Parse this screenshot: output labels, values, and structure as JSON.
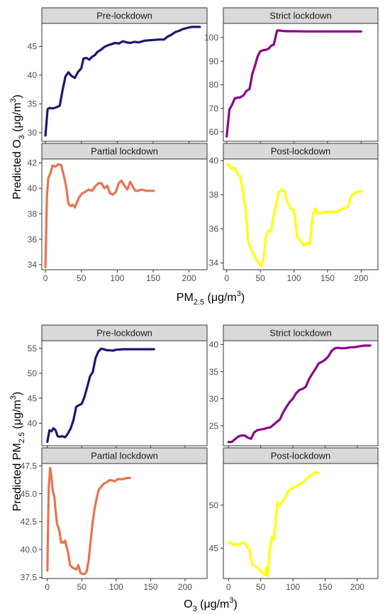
{
  "top_figure": {
    "xlabel": {
      "main": "PM",
      "sub": "2.5",
      "rest": " (μg/m",
      "sup": "3",
      "end": ")"
    },
    "ylabel": {
      "main": "Predicted O",
      "sub": "3",
      "rest": " (μg/m",
      "sup": "3",
      "end": ")"
    }
  },
  "bottom_figure": {
    "xlabel": {
      "main": "O",
      "sub": "3",
      "rest": " (μg/m",
      "sup": "3",
      "end": ")"
    },
    "ylabel": {
      "main": "Predicted PM",
      "sub": "2.5",
      "rest": " (μg/m",
      "sup": "3",
      "end": ")"
    }
  },
  "chart_data": [
    {
      "type": "line",
      "panel": "Pre-lockdown",
      "figure": "top",
      "xlim": [
        -5,
        225
      ],
      "ylim": [
        28.5,
        49
      ],
      "xticks": [
        0,
        50,
        100,
        150,
        200
      ],
      "yticks": [
        30,
        35,
        40,
        45
      ],
      "color": "#191970",
      "x": [
        0,
        3,
        6,
        10,
        13,
        17,
        20,
        24,
        28,
        32,
        36,
        41,
        45,
        50,
        53,
        57,
        61,
        65,
        69,
        72,
        77,
        82,
        87,
        92,
        97,
        102,
        108,
        113,
        118,
        124,
        130,
        138,
        148,
        158,
        165,
        170,
        175,
        181,
        186,
        191,
        197,
        203,
        210,
        215
      ],
      "y": [
        29.5,
        34.1,
        34.3,
        34.2,
        34.3,
        34.5,
        34.7,
        37.5,
        39.8,
        40.5,
        39.9,
        39.5,
        40.5,
        41.2,
        42.9,
        43.0,
        42.7,
        43.2,
        43.5,
        44.0,
        44.4,
        44.9,
        45.2,
        45.4,
        45.6,
        45.5,
        45.9,
        45.7,
        45.6,
        45.8,
        45.7,
        46.0,
        46.1,
        46.2,
        46.2,
        46.7,
        47.0,
        47.5,
        47.7,
        48.0,
        48.2,
        48.4,
        48.4,
        48.4
      ]
    },
    {
      "type": "line",
      "panel": "Strict lockdown",
      "figure": "top",
      "xlim": [
        -5,
        225
      ],
      "ylim": [
        56,
        106
      ],
      "xticks": [
        0,
        50,
        100,
        150,
        200
      ],
      "yticks": [
        60,
        70,
        80,
        90,
        100
      ],
      "color": "#8B008B",
      "x": [
        0,
        4,
        8,
        12,
        16,
        20,
        25,
        29,
        34,
        38,
        42,
        46,
        50,
        54,
        58,
        62,
        66,
        70,
        75,
        79,
        83,
        90,
        100,
        120,
        150,
        180,
        200
      ],
      "y": [
        58,
        69.5,
        71.5,
        74.2,
        74.5,
        74.6,
        75.5,
        77.3,
        78.2,
        84.5,
        88.0,
        92.0,
        94.2,
        94.6,
        94.8,
        95.2,
        96.5,
        97.0,
        103.0,
        103.0,
        102.8,
        102.7,
        102.7,
        102.6,
        102.6,
        102.6,
        102.6
      ]
    },
    {
      "type": "line",
      "panel": "Partial lockdown",
      "figure": "top",
      "xlim": [
        -5,
        225
      ],
      "ylim": [
        33.6,
        42.3
      ],
      "xticks": [
        0,
        50,
        100,
        150,
        200
      ],
      "yticks": [
        34,
        36,
        38,
        40,
        42
      ],
      "color": "#E9734F",
      "x": [
        0,
        2,
        4,
        7,
        10,
        14,
        18,
        22,
        26,
        29,
        32,
        35,
        38,
        41,
        44,
        47,
        51,
        55,
        60,
        65,
        70,
        74,
        78,
        82,
        86,
        90,
        94,
        98,
        102,
        106,
        110,
        114,
        118,
        122,
        125,
        129,
        134,
        140,
        146,
        151
      ],
      "y": [
        33.8,
        39.3,
        40.8,
        41.2,
        41.8,
        41.7,
        41.9,
        41.8,
        40.9,
        40.1,
        38.8,
        38.6,
        38.7,
        38.5,
        38.9,
        39.3,
        39.6,
        39.7,
        39.9,
        39.8,
        40.2,
        40.4,
        40.4,
        40.0,
        40.2,
        39.6,
        39.5,
        39.7,
        40.4,
        40.6,
        40.2,
        39.9,
        40.5,
        40.1,
        39.8,
        39.8,
        39.9,
        39.8,
        39.8,
        39.8
      ]
    },
    {
      "type": "line",
      "panel": "Post-lockdown",
      "figure": "top",
      "xlim": [
        -5,
        225
      ],
      "ylim": [
        33.6,
        40.1
      ],
      "xticks": [
        0,
        50,
        100,
        150,
        200
      ],
      "yticks": [
        34,
        36,
        38,
        40
      ],
      "color": "#FFFF00",
      "x": [
        0,
        4,
        8,
        12,
        16,
        20,
        24,
        28,
        32,
        36,
        40,
        44,
        48,
        52,
        55,
        58,
        62,
        66,
        70,
        74,
        78,
        82,
        86,
        90,
        95,
        100,
        105,
        110,
        115,
        120,
        124,
        128,
        132,
        136,
        140,
        145,
        150,
        156,
        162,
        168,
        174,
        180,
        185,
        190,
        196,
        201
      ],
      "y": [
        39.8,
        39.7,
        39.5,
        39.6,
        39.2,
        39.1,
        38.2,
        37.2,
        35.3,
        34.8,
        34.5,
        34.2,
        34.0,
        33.8,
        34.3,
        35.5,
        35.9,
        35.9,
        36.8,
        37.5,
        38.2,
        38.3,
        38.2,
        37.6,
        37.2,
        37.1,
        35.5,
        35.3,
        35.0,
        35.2,
        35.1,
        36.8,
        37.2,
        36.9,
        36.9,
        37.0,
        37.0,
        37.0,
        37.0,
        37.1,
        37.2,
        37.3,
        37.9,
        38.1,
        38.2,
        38.2
      ]
    },
    {
      "type": "line",
      "panel": "Pre-lockdown",
      "figure": "bottom",
      "xlim": [
        -8,
        232
      ],
      "ylim": [
        35.5,
        56.5
      ],
      "xticks": [
        0,
        50,
        100,
        150,
        200
      ],
      "yticks": [
        40,
        45,
        50,
        55
      ],
      "color": "#191970",
      "x": [
        0,
        3,
        6,
        9,
        12,
        15,
        18,
        22,
        26,
        30,
        34,
        38,
        42,
        46,
        50,
        54,
        58,
        62,
        66,
        70,
        74,
        78,
        82,
        86,
        90,
        95,
        100,
        110,
        120,
        130,
        140,
        150,
        155
      ],
      "y": [
        36.3,
        38.6,
        38.4,
        39.0,
        38.6,
        37.4,
        37.3,
        37.4,
        37.2,
        38.0,
        39.0,
        40.7,
        43.3,
        43.6,
        43.9,
        45.3,
        47.3,
        49.4,
        50.2,
        53.0,
        54.3,
        54.9,
        54.8,
        54.6,
        54.6,
        54.5,
        54.7,
        54.8,
        54.8,
        54.8,
        54.8,
        54.8,
        54.8
      ]
    },
    {
      "type": "line",
      "panel": "Strict lockdown",
      "figure": "bottom",
      "xlim": [
        -8,
        232
      ],
      "ylim": [
        21.3,
        40.7
      ],
      "xticks": [
        0,
        50,
        100,
        150,
        200
      ],
      "yticks": [
        25,
        30,
        35,
        40
      ],
      "color": "#8B008B",
      "x": [
        0,
        5,
        10,
        15,
        20,
        25,
        30,
        35,
        40,
        45,
        50,
        55,
        60,
        65,
        70,
        75,
        80,
        85,
        90,
        95,
        100,
        105,
        110,
        115,
        120,
        125,
        130,
        135,
        140,
        145,
        150,
        155,
        160,
        165,
        170,
        175,
        180,
        185,
        190,
        195,
        200,
        205,
        210,
        215,
        220
      ],
      "y": [
        22.0,
        22.0,
        22.5,
        23.0,
        23.2,
        23.2,
        22.8,
        22.6,
        23.8,
        24.2,
        24.3,
        24.4,
        24.6,
        24.7,
        25.2,
        25.7,
        26.2,
        27.5,
        28.5,
        29.4,
        30.0,
        31.0,
        31.6,
        31.8,
        32.2,
        33.6,
        34.6,
        35.5,
        36.5,
        36.8,
        37.2,
        37.8,
        38.8,
        39.3,
        39.4,
        39.3,
        39.3,
        39.4,
        39.5,
        39.5,
        39.6,
        39.7,
        39.8,
        39.8,
        39.8
      ]
    },
    {
      "type": "line",
      "panel": "Partial lockdown",
      "figure": "bottom",
      "xlim": [
        -8,
        232
      ],
      "ylim": [
        37.4,
        47.7
      ],
      "xticks": [
        0,
        50,
        100,
        150,
        200
      ],
      "yticks": [
        37.5,
        40.0,
        42.5,
        45.0,
        47.5
      ],
      "color": "#E9734F",
      "x": [
        0,
        2,
        4,
        6,
        8,
        10,
        12,
        14,
        16,
        18,
        20,
        22,
        24,
        26,
        28,
        30,
        33,
        36,
        39,
        42,
        45,
        48,
        51,
        54,
        57,
        60,
        63,
        66,
        69,
        72,
        75,
        78,
        82,
        86,
        90,
        94,
        98,
        102,
        106,
        110,
        115,
        120
      ],
      "y": [
        38.1,
        45.5,
        47.3,
        46.5,
        45.2,
        44.8,
        43.5,
        42.3,
        42.0,
        41.5,
        40.6,
        40.7,
        40.6,
        40.8,
        40.2,
        39.8,
        38.6,
        38.4,
        38.3,
        38.2,
        38.6,
        37.9,
        37.8,
        37.8,
        38.0,
        39.0,
        40.8,
        42.5,
        43.8,
        44.7,
        45.4,
        45.6,
        45.9,
        46.0,
        46.2,
        46.2,
        46.1,
        46.3,
        46.3,
        46.3,
        46.4,
        46.4
      ]
    },
    {
      "type": "line",
      "panel": "Post-lockdown",
      "figure": "bottom",
      "xlim": [
        -8,
        232
      ],
      "ylim": [
        41.5,
        54.8
      ],
      "xticks": [
        0,
        50,
        100,
        150,
        200
      ],
      "yticks": [
        45,
        50
      ],
      "color": "#FFFF00",
      "x": [
        0,
        3,
        6,
        9,
        12,
        15,
        18,
        21,
        24,
        27,
        30,
        33,
        36,
        39,
        42,
        45,
        48,
        51,
        54,
        57,
        59,
        61,
        64,
        67,
        70,
        73,
        76,
        80,
        84,
        88,
        92,
        96,
        100,
        104,
        108,
        112,
        116,
        120,
        125,
        130,
        135,
        140
      ],
      "y": [
        45.6,
        45.7,
        45.5,
        45.3,
        45.5,
        45.4,
        45.5,
        45.6,
        45.7,
        45.5,
        45.0,
        44.8,
        43.3,
        43.0,
        42.9,
        42.7,
        42.6,
        42.3,
        42.0,
        41.9,
        42.8,
        41.8,
        44.8,
        46.3,
        46.0,
        48.0,
        50.3,
        50.0,
        50.5,
        50.8,
        51.5,
        51.8,
        52.0,
        52.1,
        52.3,
        52.5,
        52.6,
        53.0,
        53.2,
        53.6,
        53.8,
        53.7
      ]
    }
  ]
}
